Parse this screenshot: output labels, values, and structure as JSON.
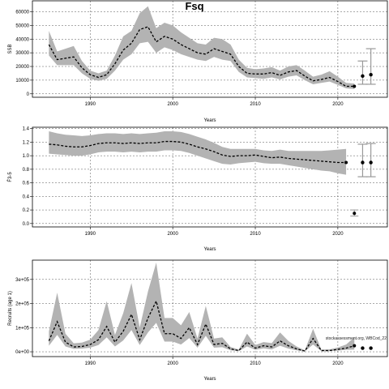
{
  "chart_data": [
    {
      "type": "line",
      "title": "Fsq",
      "xlabel": "Years",
      "ylabel": "SSB",
      "xlim": [
        1983,
        2026
      ],
      "ylim": [
        -2500,
        68000
      ],
      "xticks": [
        1990,
        2000,
        2010,
        2020
      ],
      "yticks": [
        0,
        10000,
        20000,
        30000,
        40000,
        50000,
        60000
      ],
      "ytick_labels": [
        "0",
        "10000",
        "20000",
        "30000",
        "40000",
        "50000",
        "60000"
      ],
      "grid": true,
      "x": [
        1985,
        1986,
        1987,
        1988,
        1989,
        1990,
        1991,
        1992,
        1993,
        1994,
        1995,
        1996,
        1997,
        1998,
        1999,
        2000,
        2001,
        2002,
        2003,
        2004,
        2005,
        2006,
        2007,
        2008,
        2009,
        2010,
        2011,
        2012,
        2013,
        2014,
        2015,
        2016,
        2017,
        2018,
        2019,
        2020,
        2021,
        2022
      ],
      "estimate": [
        36000,
        25000,
        26000,
        27000,
        19000,
        14000,
        12000,
        14000,
        22000,
        32000,
        37000,
        47000,
        49000,
        38000,
        42000,
        40000,
        36000,
        33000,
        30000,
        29000,
        33000,
        31000,
        29000,
        20000,
        15000,
        14500,
        14500,
        15500,
        13500,
        16000,
        17000,
        13000,
        9500,
        10500,
        12000,
        9000,
        5500,
        5500
      ],
      "upper": [
        46000,
        31000,
        33000,
        35000,
        24000,
        17000,
        15000,
        17000,
        28000,
        42000,
        46000,
        59000,
        64000,
        48000,
        52000,
        50000,
        45000,
        41000,
        37000,
        36000,
        41000,
        40000,
        36000,
        25000,
        19000,
        18000,
        18500,
        19500,
        17000,
        20000,
        21000,
        17000,
        12500,
        14000,
        16500,
        12500,
        8000,
        7500
      ],
      "lower": [
        28000,
        21000,
        21000,
        21000,
        15000,
        11000,
        9500,
        11000,
        17000,
        25000,
        29000,
        37000,
        38000,
        30000,
        34000,
        32000,
        29000,
        27000,
        25000,
        24000,
        27000,
        25000,
        24000,
        16000,
        12000,
        11500,
        11000,
        12000,
        10500,
        12500,
        13500,
        10000,
        7000,
        8000,
        9000,
        6500,
        4000,
        3500
      ],
      "forecast": {
        "x": [
          2023,
          2024
        ],
        "values": [
          13000,
          14000
        ],
        "upper": [
          24000,
          33000
        ],
        "lower": [
          7000,
          7000
        ]
      }
    },
    {
      "type": "line",
      "xlabel": "Years",
      "ylabel": "F̄3-5",
      "xlim": [
        1983,
        2026
      ],
      "ylim": [
        -0.05,
        1.42
      ],
      "xticks": [
        1990,
        2000,
        2010,
        2020
      ],
      "yticks": [
        0.0,
        0.2,
        0.4,
        0.6,
        0.8,
        1.0,
        1.2,
        1.4
      ],
      "ytick_labels": [
        "0.0",
        "0.2",
        "0.4",
        "0.6",
        "0.8",
        "1.0",
        "1.2",
        "1.4"
      ],
      "grid": true,
      "x": [
        1985,
        1986,
        1987,
        1988,
        1989,
        1990,
        1991,
        1992,
        1993,
        1994,
        1995,
        1996,
        1997,
        1998,
        1999,
        2000,
        2001,
        2002,
        2003,
        2004,
        2005,
        2006,
        2007,
        2008,
        2009,
        2010,
        2011,
        2012,
        2013,
        2014,
        2015,
        2016,
        2017,
        2018,
        2019,
        2020,
        2021
      ],
      "estimate": [
        1.17,
        1.16,
        1.14,
        1.13,
        1.13,
        1.15,
        1.18,
        1.19,
        1.19,
        1.18,
        1.19,
        1.18,
        1.19,
        1.19,
        1.21,
        1.21,
        1.2,
        1.17,
        1.13,
        1.1,
        1.06,
        1.01,
        0.99,
        1.0,
        1.0,
        1.01,
        0.99,
        0.97,
        0.98,
        0.96,
        0.95,
        0.94,
        0.93,
        0.92,
        0.91,
        0.9,
        0.9
      ],
      "upper": [
        1.36,
        1.33,
        1.31,
        1.3,
        1.29,
        1.3,
        1.32,
        1.33,
        1.33,
        1.32,
        1.33,
        1.32,
        1.33,
        1.34,
        1.36,
        1.36,
        1.35,
        1.32,
        1.28,
        1.24,
        1.19,
        1.13,
        1.1,
        1.1,
        1.1,
        1.1,
        1.08,
        1.07,
        1.09,
        1.07,
        1.07,
        1.07,
        1.07,
        1.07,
        1.08,
        1.09,
        1.1
      ],
      "lower": [
        1.03,
        1.02,
        1.01,
        1.0,
        1.0,
        1.02,
        1.05,
        1.06,
        1.06,
        1.05,
        1.06,
        1.05,
        1.06,
        1.06,
        1.08,
        1.08,
        1.07,
        1.04,
        1.0,
        0.96,
        0.92,
        0.88,
        0.87,
        0.89,
        0.9,
        0.91,
        0.89,
        0.88,
        0.88,
        0.86,
        0.84,
        0.82,
        0.8,
        0.78,
        0.77,
        0.74,
        0.72
      ],
      "forecast": {
        "x": [
          2023,
          2024
        ],
        "values": [
          0.9,
          0.9
        ],
        "upper": [
          1.17,
          1.18
        ],
        "lower": [
          0.69,
          0.69
        ]
      },
      "reference_point": {
        "x": 2022,
        "y": 0.15,
        "upper": 0.2,
        "lower": 0.11
      }
    },
    {
      "type": "line",
      "xlabel": "Years",
      "ylabel": "Recruits (age 1)",
      "xlim": [
        1983,
        2026
      ],
      "ylim": [
        -20000,
        380000
      ],
      "xticks": [
        1990,
        2000,
        2010,
        2020
      ],
      "yticks": [
        0,
        100000,
        200000,
        300000
      ],
      "ytick_labels": [
        "0e+00",
        "1e+05",
        "2e+05",
        "3e+05"
      ],
      "grid": true,
      "x": [
        1985,
        1986,
        1987,
        1988,
        1989,
        1990,
        1991,
        1992,
        1993,
        1994,
        1995,
        1996,
        1997,
        1998,
        1999,
        2000,
        2001,
        2002,
        2003,
        2004,
        2005,
        2006,
        2007,
        2008,
        2009,
        2010,
        2011,
        2012,
        2013,
        2014,
        2015,
        2016,
        2017,
        2018,
        2019,
        2020,
        2021,
        2022
      ],
      "estimate": [
        45000,
        125000,
        40000,
        20000,
        22000,
        30000,
        50000,
        105000,
        40000,
        85000,
        155000,
        50000,
        140000,
        210000,
        75000,
        75000,
        55000,
        100000,
        30000,
        115000,
        30000,
        35000,
        12000,
        5000,
        40000,
        15000,
        25000,
        20000,
        45000,
        25000,
        12000,
        3000,
        55000,
        5000,
        5000,
        10000,
        15000,
        25000
      ],
      "upper": [
        85000,
        245000,
        75000,
        35000,
        38000,
        50000,
        90000,
        210000,
        70000,
        160000,
        285000,
        100000,
        250000,
        370000,
        140000,
        140000,
        110000,
        165000,
        55000,
        190000,
        55000,
        60000,
        20000,
        9000,
        75000,
        28000,
        40000,
        36000,
        80000,
        45000,
        22000,
        6000,
        95000,
        9000,
        10000,
        18000,
        30000,
        60000
      ],
      "lower": [
        25000,
        70000,
        22000,
        12000,
        13000,
        17000,
        28000,
        60000,
        22000,
        47000,
        90000,
        28000,
        80000,
        120000,
        42000,
        42000,
        30000,
        57000,
        17000,
        66000,
        17000,
        19000,
        6000,
        2500,
        22000,
        8000,
        14000,
        10000,
        25000,
        13000,
        6000,
        1500,
        30000,
        2500,
        2500,
        5000,
        8000,
        9000
      ],
      "forecast": {
        "x": [
          2023,
          2024
        ],
        "values": [
          15000,
          15000
        ]
      },
      "annotations": [
        "stockassessment.org, WBCod_22"
      ]
    }
  ]
}
